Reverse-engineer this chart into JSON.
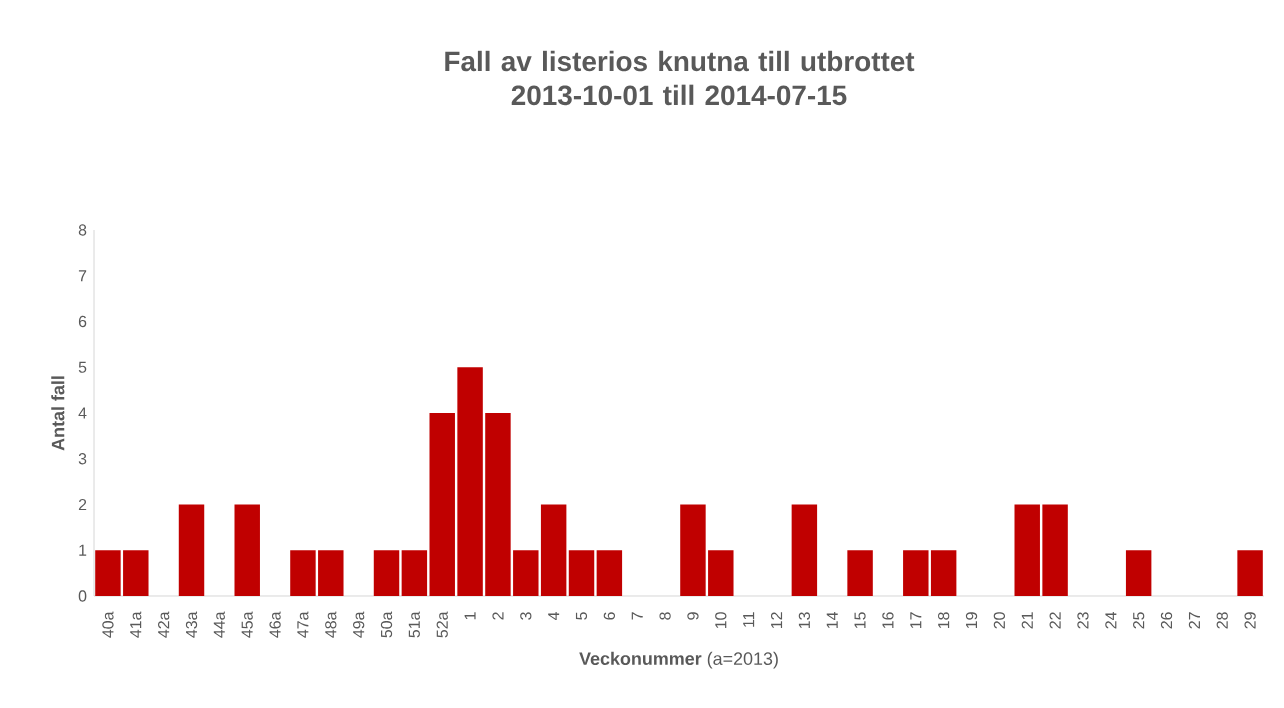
{
  "chart_data": {
    "type": "bar",
    "title": "Fall av listerios knutna till utbrottet\n2013-10-01 till 2014-07-15",
    "xlabel": "**Veckonummer** (a=2013)",
    "ylabel": "Antal fall",
    "categories": [
      "40a",
      "41a",
      "42a",
      "43a",
      "44a",
      "45a",
      "46a",
      "47a",
      "48a",
      "49a",
      "50a",
      "51a",
      "52a",
      "1",
      "2",
      "3",
      "4",
      "5",
      "6",
      "7",
      "8",
      "9",
      "10",
      "11",
      "12",
      "13",
      "14",
      "15",
      "16",
      "17",
      "18",
      "19",
      "20",
      "21",
      "22",
      "23",
      "24",
      "25",
      "26",
      "27",
      "28",
      "29"
    ],
    "values": [
      1,
      1,
      0,
      2,
      0,
      2,
      0,
      1,
      1,
      0,
      1,
      1,
      4,
      5,
      4,
      1,
      2,
      1,
      1,
      0,
      0,
      2,
      1,
      0,
      0,
      2,
      0,
      1,
      0,
      1,
      1,
      0,
      0,
      2,
      2,
      0,
      0,
      1,
      0,
      0,
      0,
      1
    ],
    "color": "#c00000",
    "ylim": [
      0,
      8
    ],
    "yticks": [
      0,
      1,
      2,
      3,
      4,
      5,
      6,
      7,
      8
    ],
    "grid": false
  }
}
